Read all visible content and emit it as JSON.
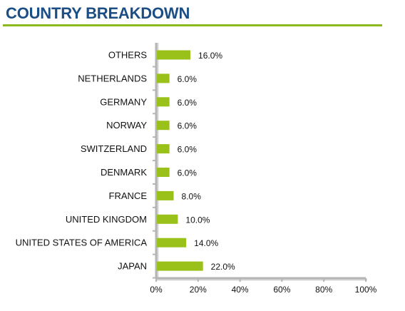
{
  "title": "COUNTRY BREAKDOWN",
  "colors": {
    "title": "#1c4e86",
    "accent_rule": "#8cba1d",
    "bar": "#99c119",
    "axis": "#b5b5b5"
  },
  "chart_data": {
    "type": "bar",
    "orientation": "horizontal",
    "categories": [
      "OTHERS",
      "NETHERLANDS",
      "GERMANY",
      "NORWAY",
      "SWITZERLAND",
      "DENMARK",
      "FRANCE",
      "UNITED KINGDOM",
      "UNITED STATES OF AMERICA",
      "JAPAN"
    ],
    "values": [
      16.0,
      6.0,
      6.0,
      6.0,
      6.0,
      6.0,
      8.0,
      10.0,
      14.0,
      22.0
    ],
    "value_labels": [
      "16.0%",
      "6.0%",
      "6.0%",
      "6.0%",
      "6.0%",
      "6.0%",
      "8.0%",
      "10.0%",
      "14.0%",
      "22.0%"
    ],
    "x_ticks": [
      "0%",
      "20%",
      "40%",
      "60%",
      "80%",
      "100%"
    ],
    "xlim": [
      0,
      100
    ],
    "grid": false,
    "legend": "none"
  }
}
